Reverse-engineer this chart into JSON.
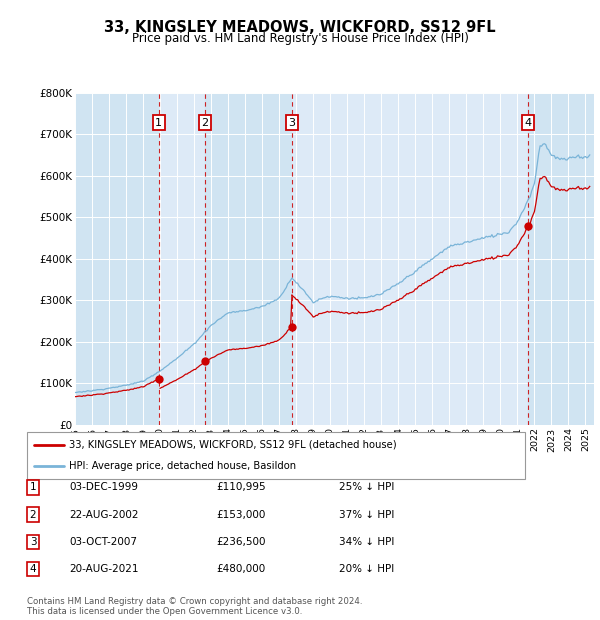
{
  "title": "33, KINGSLEY MEADOWS, WICKFORD, SS12 9FL",
  "subtitle": "Price paid vs. HM Land Registry's House Price Index (HPI)",
  "legend_line1": "33, KINGSLEY MEADOWS, WICKFORD, SS12 9FL (detached house)",
  "legend_line2": "HPI: Average price, detached house, Basildon",
  "footer1": "Contains HM Land Registry data © Crown copyright and database right 2024.",
  "footer2": "This data is licensed under the Open Government Licence v3.0.",
  "transactions": [
    {
      "num": 1,
      "date": "03-DEC-1999",
      "price": 110995,
      "pct": "25%",
      "year": 1999.92
    },
    {
      "num": 2,
      "date": "22-AUG-2002",
      "price": 153000,
      "pct": "37%",
      "year": 2002.64
    },
    {
      "num": 3,
      "date": "03-OCT-2007",
      "price": 236500,
      "pct": "34%",
      "year": 2007.75
    },
    {
      "num": 4,
      "date": "20-AUG-2021",
      "price": 480000,
      "pct": "20%",
      "year": 2021.64
    }
  ],
  "hpi_color": "#7ab4d8",
  "price_color": "#cc0000",
  "plot_bg": "#dce9f5",
  "shade_color": "#c5ddf0",
  "grid_color": "#ffffff",
  "vline_color": "#cc0000",
  "box_color": "#cc0000",
  "ylim": [
    0,
    800000
  ],
  "xlim_start": 1995.0,
  "xlim_end": 2025.5,
  "yticks": [
    0,
    100000,
    200000,
    300000,
    400000,
    500000,
    600000,
    700000,
    800000
  ],
  "ytick_labels": [
    "£0",
    "£100K",
    "£200K",
    "£300K",
    "£400K",
    "£500K",
    "£600K",
    "£700K",
    "£800K"
  ],
  "xticks": [
    1995,
    1996,
    1997,
    1998,
    1999,
    2000,
    2001,
    2002,
    2003,
    2004,
    2005,
    2006,
    2007,
    2008,
    2009,
    2010,
    2011,
    2012,
    2013,
    2014,
    2015,
    2016,
    2017,
    2018,
    2019,
    2020,
    2021,
    2022,
    2023,
    2024,
    2025
  ]
}
